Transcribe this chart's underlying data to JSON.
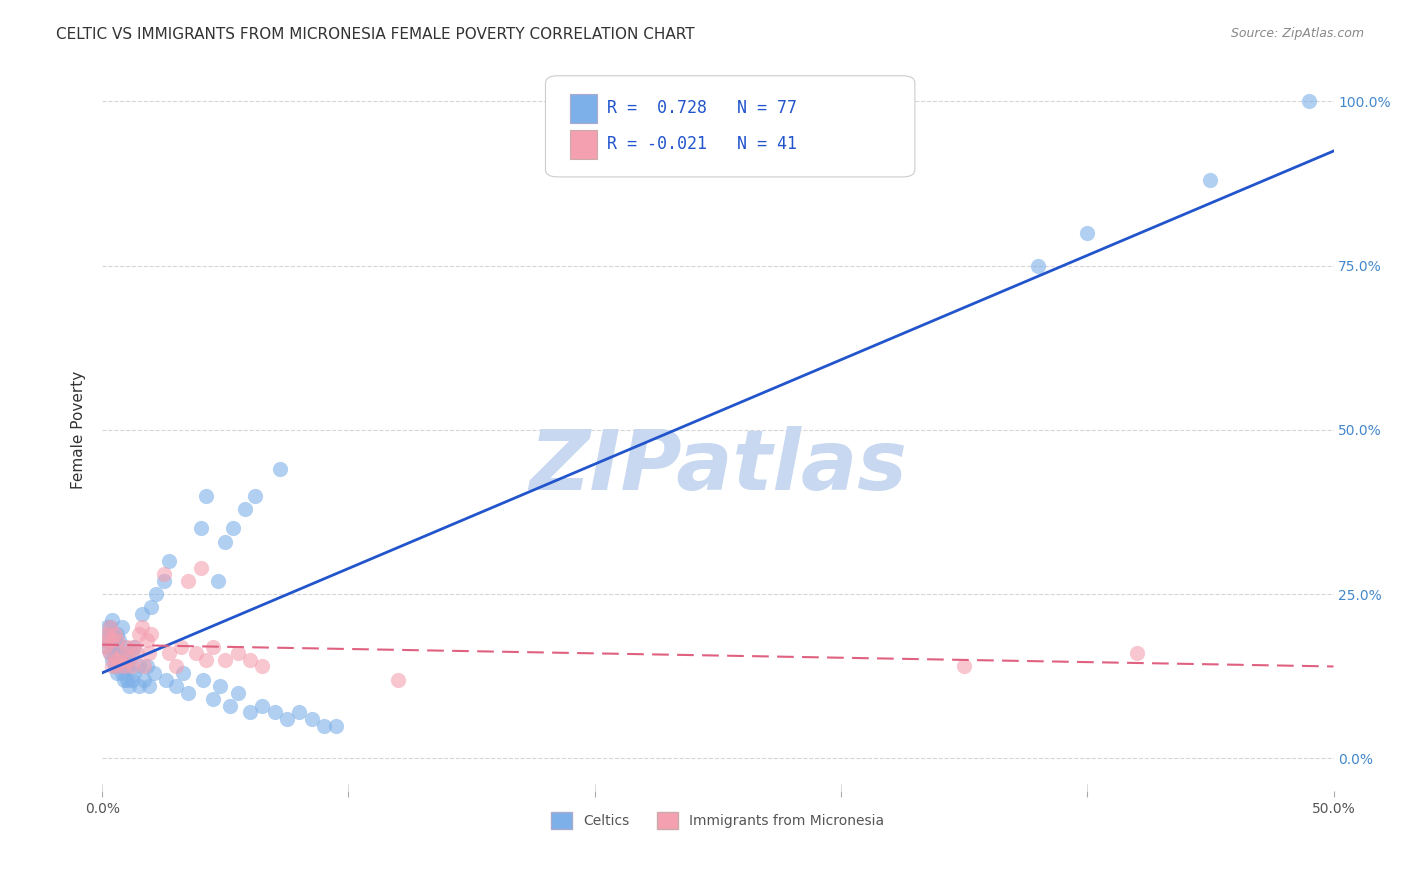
{
  "title": "CELTIC VS IMMIGRANTS FROM MICRONESIA FEMALE POVERTY CORRELATION CHART",
  "source": "Source: ZipAtlas.com",
  "xlabel_bottom": "",
  "ylabel": "Female Poverty",
  "x_min": 0.0,
  "x_max": 0.5,
  "y_min": -0.05,
  "y_max": 1.05,
  "x_ticks": [
    0.0,
    0.1,
    0.2,
    0.3,
    0.4,
    0.5
  ],
  "x_tick_labels": [
    "0.0%",
    "",
    "",
    "",
    "",
    "50.0%"
  ],
  "y_ticks_right": [
    0.0,
    0.25,
    0.5,
    0.75,
    1.0
  ],
  "y_tick_labels_right": [
    "0.0%",
    "25.0%",
    "50.0%",
    "75.0%",
    "100.0%"
  ],
  "grid_color": "#cccccc",
  "background_color": "#ffffff",
  "celtics_color": "#7db0e8",
  "micronesia_color": "#f4a0b0",
  "celtics_line_color": "#2255cc",
  "micronesia_line_color": "#e06080",
  "watermark": "ZIPatlas",
  "watermark_color": "#c8d8f0",
  "legend_r_celtics": "R =  0.728",
  "legend_n_celtics": "N = 77",
  "legend_r_micronesia": "R = -0.021",
  "legend_n_micronesia": "N = 41",
  "celtics_R": 0.728,
  "celtics_N": 77,
  "micronesia_R": -0.021,
  "micronesia_N": 41,
  "celtics_x": [
    0.001,
    0.002,
    0.002,
    0.003,
    0.003,
    0.003,
    0.003,
    0.004,
    0.004,
    0.004,
    0.004,
    0.005,
    0.005,
    0.005,
    0.005,
    0.006,
    0.006,
    0.006,
    0.006,
    0.007,
    0.007,
    0.007,
    0.008,
    0.008,
    0.008,
    0.009,
    0.009,
    0.009,
    0.01,
    0.01,
    0.01,
    0.011,
    0.011,
    0.012,
    0.012,
    0.013,
    0.013,
    0.015,
    0.015,
    0.016,
    0.017,
    0.018,
    0.019,
    0.02,
    0.021,
    0.022,
    0.025,
    0.026,
    0.027,
    0.03,
    0.033,
    0.035,
    0.04,
    0.041,
    0.042,
    0.045,
    0.047,
    0.048,
    0.05,
    0.052,
    0.053,
    0.055,
    0.058,
    0.06,
    0.062,
    0.065,
    0.07,
    0.072,
    0.075,
    0.08,
    0.085,
    0.09,
    0.095,
    0.38,
    0.4,
    0.45,
    0.49
  ],
  "celtics_y": [
    0.18,
    0.17,
    0.2,
    0.16,
    0.18,
    0.19,
    0.2,
    0.15,
    0.17,
    0.19,
    0.21,
    0.14,
    0.15,
    0.16,
    0.18,
    0.13,
    0.14,
    0.16,
    0.19,
    0.14,
    0.16,
    0.18,
    0.13,
    0.15,
    0.2,
    0.12,
    0.14,
    0.17,
    0.12,
    0.14,
    0.16,
    0.11,
    0.15,
    0.12,
    0.16,
    0.13,
    0.17,
    0.11,
    0.14,
    0.22,
    0.12,
    0.14,
    0.11,
    0.23,
    0.13,
    0.25,
    0.27,
    0.12,
    0.3,
    0.11,
    0.13,
    0.1,
    0.35,
    0.12,
    0.4,
    0.09,
    0.27,
    0.11,
    0.33,
    0.08,
    0.35,
    0.1,
    0.38,
    0.07,
    0.4,
    0.08,
    0.07,
    0.44,
    0.06,
    0.07,
    0.06,
    0.05,
    0.05,
    0.75,
    0.8,
    0.88,
    1.0
  ],
  "micronesia_x": [
    0.001,
    0.002,
    0.002,
    0.003,
    0.003,
    0.004,
    0.004,
    0.005,
    0.005,
    0.006,
    0.006,
    0.007,
    0.008,
    0.009,
    0.01,
    0.011,
    0.012,
    0.013,
    0.014,
    0.015,
    0.016,
    0.017,
    0.018,
    0.019,
    0.02,
    0.025,
    0.027,
    0.03,
    0.032,
    0.035,
    0.038,
    0.04,
    0.042,
    0.045,
    0.05,
    0.055,
    0.06,
    0.065,
    0.12,
    0.35,
    0.42
  ],
  "micronesia_y": [
    0.17,
    0.18,
    0.19,
    0.16,
    0.2,
    0.14,
    0.18,
    0.15,
    0.19,
    0.14,
    0.18,
    0.15,
    0.16,
    0.14,
    0.17,
    0.15,
    0.14,
    0.17,
    0.16,
    0.19,
    0.2,
    0.14,
    0.18,
    0.16,
    0.19,
    0.28,
    0.16,
    0.14,
    0.17,
    0.27,
    0.16,
    0.29,
    0.15,
    0.17,
    0.15,
    0.16,
    0.15,
    0.14,
    0.12,
    0.14,
    0.16
  ]
}
